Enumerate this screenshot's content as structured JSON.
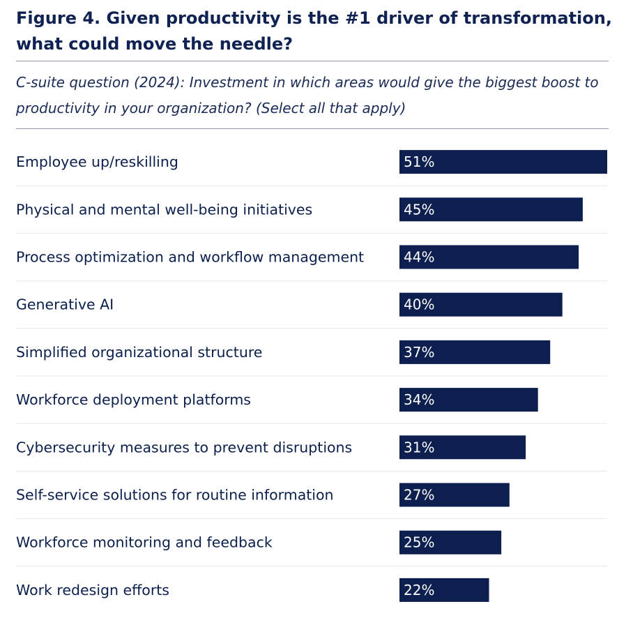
{
  "title": "Figure 4. Given productivity is the #1 driver of transformation, what could move the needle?",
  "subtitle": "C-suite question (2024): Investment in which areas would give the biggest boost to productivity in your organization? (Select all that apply)",
  "colors": {
    "bar": "#0c1f4f",
    "text": "#0b1f4d",
    "value_label": "#ffffff"
  },
  "chart_data": {
    "type": "bar",
    "orientation": "horizontal",
    "categories": [
      "Employee up/reskilling",
      "Physical and mental well-being initiatives",
      "Process optimization and workflow management",
      "Generative AI",
      "Simplified organizational structure",
      "Workforce deployment platforms",
      "Cybersecurity measures to prevent disruptions",
      "Self-service solutions for routine information",
      "Workforce monitoring and feedback",
      "Work redesign efforts"
    ],
    "values": [
      51,
      45,
      44,
      40,
      37,
      34,
      31,
      27,
      25,
      22
    ],
    "value_labels": [
      "51%",
      "45%",
      "44%",
      "40%",
      "37%",
      "34%",
      "31%",
      "27%",
      "25%",
      "22%"
    ],
    "unit": "%",
    "grid": false,
    "legend": "none"
  }
}
